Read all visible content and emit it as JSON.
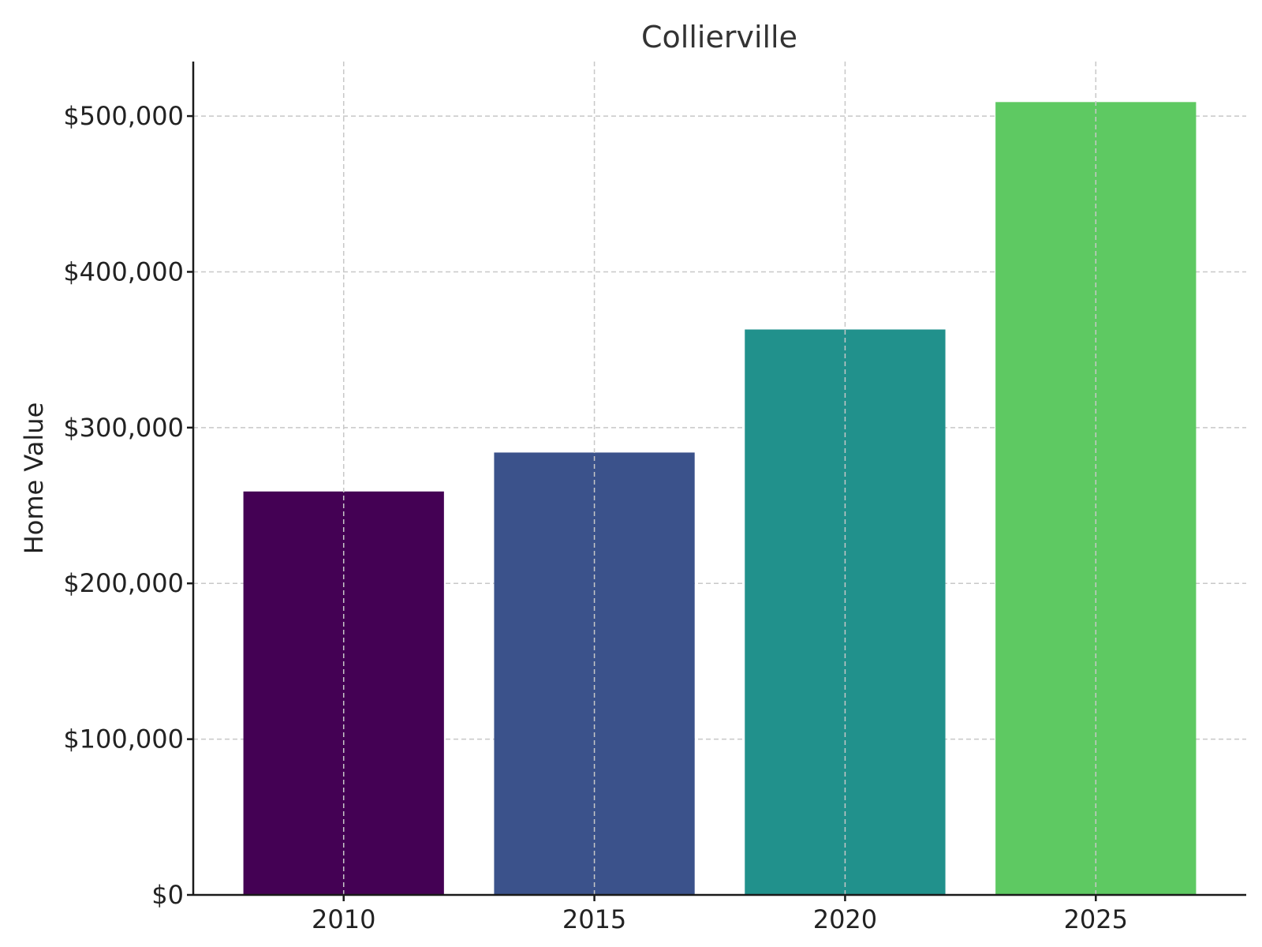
{
  "chart_data": {
    "type": "bar",
    "title": "Collierville",
    "xlabel": "",
    "ylabel": "Home Value",
    "categories": [
      "2010",
      "2015",
      "2020",
      "2025"
    ],
    "values": [
      259000,
      284000,
      363000,
      509000
    ],
    "colors": [
      "#440154",
      "#3b528b",
      "#21918c",
      "#5ec962"
    ],
    "ylim": [
      0,
      535000
    ],
    "yticks": [
      0,
      100000,
      200000,
      300000,
      400000,
      500000
    ],
    "ytick_labels": [
      "$0",
      "$100,000",
      "$200,000",
      "$300,000",
      "$400,000",
      "$500,000"
    ],
    "grid": true,
    "legend": "none"
  }
}
